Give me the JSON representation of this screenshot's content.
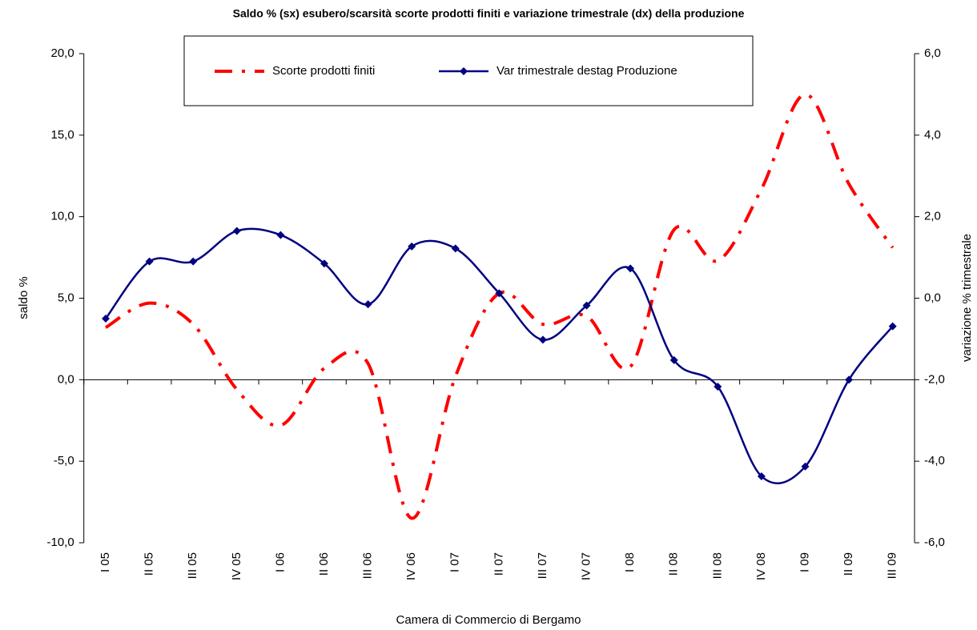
{
  "chart_data": {
    "type": "line",
    "title": "Saldo % (sx) esubero/scarsità scorte prodotti finiti e variazione trimestrale (dx) della produzione",
    "ylabel": "saldo %",
    "y2label": "variazione % trimestrale",
    "footer": "Camera di Commercio di Bergamo",
    "categories": [
      "I 05",
      "II 05",
      "III 05",
      "IV 05",
      "I 06",
      "II 06",
      "III 06",
      "IV 06",
      "I 07",
      "II 07",
      "III 07",
      "IV 07",
      "I 08",
      "II 08",
      "III 08",
      "IV 08",
      "I 09",
      "II 09",
      "III 09"
    ],
    "series": [
      {
        "name": "Scorte prodotti finiti",
        "color": "#ff0000",
        "style": "dash-dot",
        "axis": "y",
        "values": [
          3.2,
          4.7,
          3.4,
          -0.6,
          -2.8,
          0.7,
          1.0,
          -8.5,
          0.2,
          5.3,
          3.4,
          3.9,
          0.8,
          9.2,
          7.3,
          11.7,
          17.5,
          12.0,
          8.1
        ]
      },
      {
        "name": "Var trimestrale destag Produzione",
        "color": "#000080",
        "style": "solid",
        "marker": "diamond",
        "axis": "y2",
        "values": [
          -0.5,
          0.9,
          0.9,
          1.65,
          1.55,
          0.85,
          -0.15,
          1.27,
          1.22,
          0.12,
          -1.02,
          -0.18,
          0.73,
          -1.52,
          -2.17,
          -4.37,
          -4.13,
          -2.0,
          -0.69
        ]
      }
    ],
    "ylim": [
      -10,
      20
    ],
    "yticks": [
      {
        "value": -10,
        "label": "-10,0"
      },
      {
        "value": -5,
        "label": "-5,0"
      },
      {
        "value": 0,
        "label": "0,0"
      },
      {
        "value": 5,
        "label": "5,0"
      },
      {
        "value": 10,
        "label": "10,0"
      },
      {
        "value": 15,
        "label": "15,0"
      },
      {
        "value": 20,
        "label": "20,0"
      }
    ],
    "y2lim": [
      -6,
      6
    ],
    "y2ticks": [
      {
        "value": -6,
        "label": "-6,0"
      },
      {
        "value": -4,
        "label": "-4,0"
      },
      {
        "value": -2,
        "label": "-2,0"
      },
      {
        "value": 0,
        "label": "0,0"
      },
      {
        "value": 2,
        "label": "2,0"
      },
      {
        "value": 4,
        "label": "4,0"
      },
      {
        "value": 6,
        "label": "6,0"
      }
    ],
    "smooth": true,
    "legend_position": "top"
  }
}
